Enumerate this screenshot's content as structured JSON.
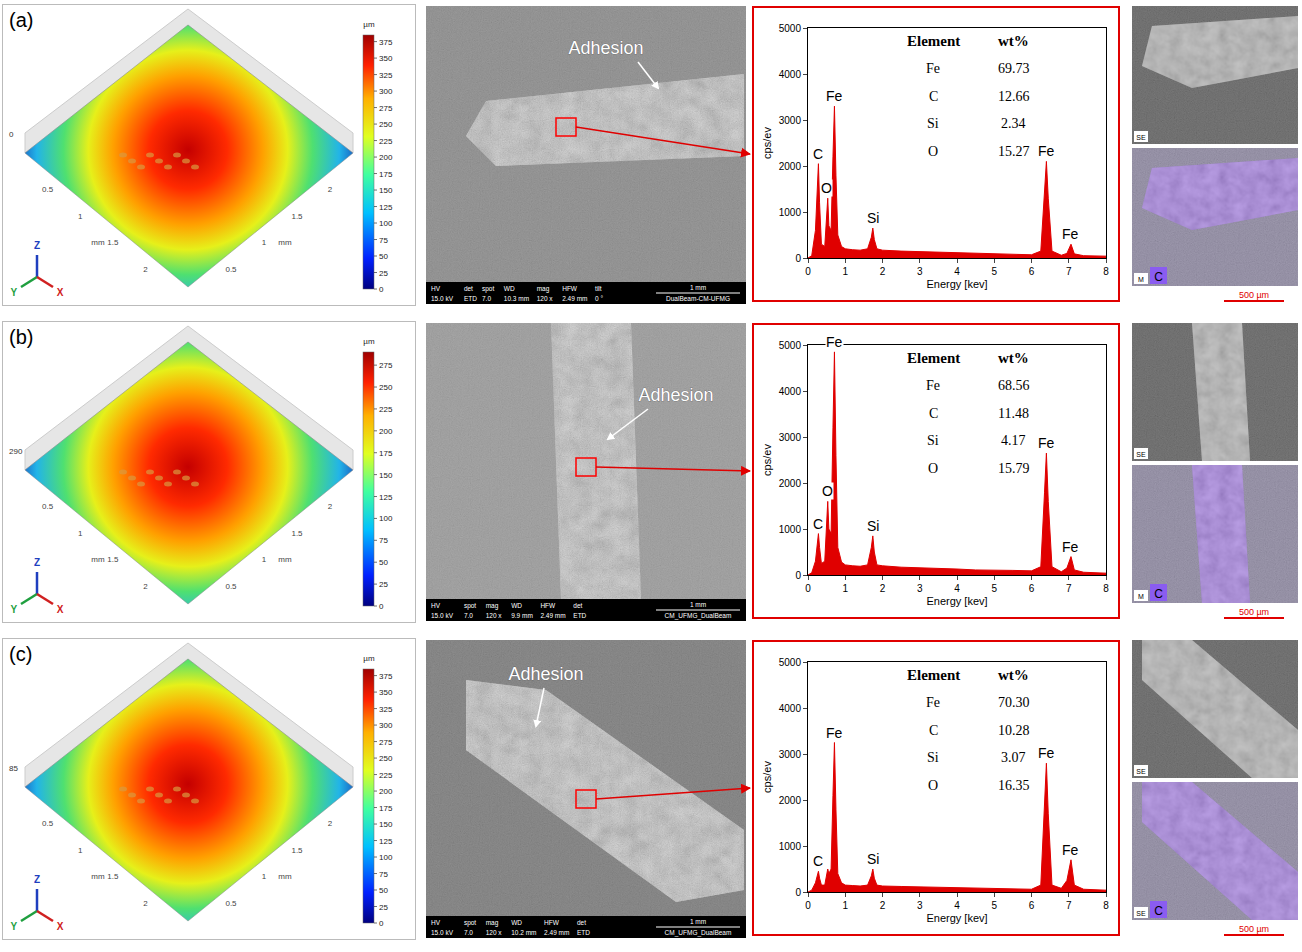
{
  "chart_data": [
    {
      "type": "area",
      "color": "#e00000",
      "x": [
        0,
        0.1,
        0.2,
        0.25,
        0.28,
        0.31,
        0.36,
        0.45,
        0.5,
        0.53,
        0.56,
        0.62,
        0.67,
        0.71,
        0.75,
        0.8,
        0.9,
        1.0,
        1.2,
        1.4,
        1.6,
        1.7,
        1.74,
        1.78,
        1.85,
        2.0,
        2.5,
        3.0,
        3.5,
        4.0,
        4.5,
        5.0,
        5.5,
        6.0,
        6.25,
        6.35,
        6.4,
        6.45,
        6.55,
        6.8,
        6.95,
        7.06,
        7.15,
        7.4,
        8.0
      ],
      "values": [
        0,
        50,
        600,
        1500,
        2050,
        1200,
        300,
        250,
        900,
        1300,
        700,
        600,
        2200,
        3300,
        1800,
        500,
        250,
        200,
        180,
        170,
        200,
        450,
        650,
        400,
        200,
        170,
        150,
        140,
        130,
        120,
        100,
        90,
        80,
        70,
        150,
        1400,
        2100,
        1300,
        150,
        60,
        100,
        300,
        90,
        50,
        40
      ],
      "xlim": [
        0,
        8
      ],
      "xticks": [
        0,
        1,
        2,
        3,
        4,
        5,
        6,
        7,
        8
      ],
      "ylim": [
        0,
        5000
      ],
      "yticks": [
        0,
        1000,
        2000,
        3000,
        4000,
        5000
      ],
      "x_label": "Energy [kev]",
      "y_label": "cps/ev",
      "grid": false,
      "peaks": [
        {
          "text": "C",
          "x": 0.28,
          "y": 2050
        },
        {
          "text": "O",
          "x": 0.5,
          "y": 1300
        },
        {
          "text": "Fe",
          "x": 0.71,
          "y": 3300
        },
        {
          "text": "Si",
          "x": 1.74,
          "y": 650
        },
        {
          "text": "Fe",
          "x": 6.4,
          "y": 2100
        },
        {
          "text": "Fe",
          "x": 7.06,
          "y": 300
        }
      ],
      "table": {
        "header": [
          "Element",
          "wt%"
        ],
        "rows": [
          [
            "Fe",
            "69.73"
          ],
          [
            "C",
            "12.66"
          ],
          [
            "Si",
            "2.34"
          ],
          [
            "O",
            "15.27"
          ]
        ]
      }
    },
    {
      "type": "area",
      "color": "#e00000",
      "x": [
        0,
        0.1,
        0.2,
        0.25,
        0.28,
        0.31,
        0.36,
        0.45,
        0.5,
        0.53,
        0.56,
        0.62,
        0.67,
        0.71,
        0.75,
        0.8,
        0.9,
        1.0,
        1.2,
        1.4,
        1.6,
        1.7,
        1.74,
        1.78,
        1.85,
        2.0,
        2.5,
        3.0,
        3.5,
        4.0,
        4.5,
        5.0,
        5.5,
        6.0,
        6.25,
        6.35,
        6.4,
        6.45,
        6.55,
        6.8,
        6.95,
        7.06,
        7.15,
        7.4,
        8.0
      ],
      "values": [
        0,
        50,
        300,
        700,
        900,
        600,
        250,
        300,
        1000,
        1600,
        1000,
        900,
        3200,
        4850,
        2600,
        600,
        280,
        220,
        200,
        190,
        220,
        600,
        850,
        500,
        220,
        200,
        170,
        160,
        150,
        130,
        110,
        110,
        100,
        90,
        180,
        1800,
        2650,
        1600,
        180,
        70,
        150,
        400,
        110,
        60,
        40
      ],
      "xlim": [
        0,
        8
      ],
      "xticks": [
        0,
        1,
        2,
        3,
        4,
        5,
        6,
        7,
        8
      ],
      "ylim": [
        0,
        5000
      ],
      "yticks": [
        0,
        1000,
        2000,
        3000,
        4000,
        5000
      ],
      "x_label": "Energy [kev]",
      "y_label": "cps/ev",
      "grid": false,
      "peaks": [
        {
          "text": "C",
          "x": 0.28,
          "y": 900
        },
        {
          "text": "O",
          "x": 0.53,
          "y": 1600
        },
        {
          "text": "Fe",
          "x": 0.71,
          "y": 4850
        },
        {
          "text": "Si",
          "x": 1.74,
          "y": 850
        },
        {
          "text": "Fe",
          "x": 6.4,
          "y": 2650
        },
        {
          "text": "Fe",
          "x": 7.06,
          "y": 400
        }
      ],
      "table": {
        "header": [
          "Element",
          "wt%"
        ],
        "rows": [
          [
            "Fe",
            "68.56"
          ],
          [
            "C",
            "11.48"
          ],
          [
            "Si",
            "4.17"
          ],
          [
            "O",
            "15.79"
          ]
        ]
      }
    },
    {
      "type": "area",
      "color": "#e00000",
      "x": [
        0,
        0.1,
        0.2,
        0.25,
        0.28,
        0.31,
        0.36,
        0.45,
        0.5,
        0.53,
        0.56,
        0.62,
        0.67,
        0.71,
        0.75,
        0.8,
        0.9,
        1.0,
        1.2,
        1.4,
        1.6,
        1.7,
        1.74,
        1.78,
        1.85,
        2.0,
        2.5,
        3.0,
        3.5,
        4.0,
        4.5,
        5.0,
        5.5,
        6.0,
        6.25,
        6.35,
        6.4,
        6.45,
        6.55,
        6.8,
        6.95,
        7.06,
        7.15,
        7.4,
        8.0
      ],
      "values": [
        0,
        40,
        200,
        380,
        450,
        300,
        150,
        150,
        350,
        500,
        400,
        500,
        2100,
        3250,
        1800,
        400,
        200,
        150,
        140,
        130,
        150,
        350,
        500,
        300,
        150,
        130,
        120,
        110,
        100,
        90,
        80,
        70,
        70,
        60,
        150,
        1800,
        2800,
        1700,
        150,
        80,
        250,
        700,
        150,
        60,
        40
      ],
      "xlim": [
        0,
        8
      ],
      "xticks": [
        0,
        1,
        2,
        3,
        4,
        5,
        6,
        7,
        8
      ],
      "ylim": [
        0,
        5000
      ],
      "yticks": [
        0,
        1000,
        2000,
        3000,
        4000,
        5000
      ],
      "x_label": "Energy [kev]",
      "y_label": "cps/ev",
      "grid": false,
      "peaks": [
        {
          "text": "C",
          "x": 0.28,
          "y": 450
        },
        {
          "text": "Fe",
          "x": 0.71,
          "y": 3250
        },
        {
          "text": "Si",
          "x": 1.74,
          "y": 500
        },
        {
          "text": "Fe",
          "x": 6.4,
          "y": 2800
        },
        {
          "text": "Fe",
          "x": 7.06,
          "y": 700
        }
      ],
      "table": {
        "header": [
          "Element",
          "wt%"
        ],
        "rows": [
          [
            "Fe",
            "70.30"
          ],
          [
            "C",
            "10.28"
          ],
          [
            "Si",
            "3.07"
          ],
          [
            "O",
            "16.35"
          ]
        ]
      }
    }
  ],
  "panels": [
    {
      "letter": "(a)",
      "profile": {
        "colorbar_unit": "µm",
        "colorbar_range": [
          0,
          385
        ],
        "colorbar_ticks": [
          0,
          25,
          50,
          75,
          100,
          125,
          150,
          175,
          200,
          225,
          250,
          275,
          300,
          325,
          350,
          375
        ],
        "corner_label": "0",
        "edge_labels": [
          "0.5",
          "1",
          "1.5",
          "2"
        ],
        "edge_unit": "mm",
        "triad": [
          "Z",
          "Y",
          "X"
        ]
      },
      "sem": {
        "label": "Adhesion",
        "info": [
          [
            "HV",
            "15.0 kV"
          ],
          [
            "det",
            "ETD"
          ],
          [
            "spot",
            "7.0"
          ],
          [
            "WD",
            "10.3 mm"
          ],
          [
            "mag",
            "120 x"
          ],
          [
            "HFW",
            "2.49 mm"
          ],
          [
            "tilt",
            "0 °"
          ]
        ],
        "scale": "1 mm",
        "lab": "DualBeam-CM-UFMG"
      },
      "mapping": {
        "labels": [
          "SE",
          "M",
          "C"
        ],
        "scale": "500 µm"
      }
    },
    {
      "letter": "(b)",
      "profile": {
        "colorbar_unit": "µm",
        "colorbar_range": [
          0,
          290
        ],
        "colorbar_ticks": [
          0,
          25,
          50,
          75,
          100,
          125,
          150,
          175,
          200,
          225,
          250,
          275
        ],
        "corner_label": "290",
        "edge_labels": [
          "0.5",
          "1",
          "1.5",
          "2"
        ],
        "edge_unit": "mm",
        "triad": [
          "Z",
          "Y",
          "X"
        ]
      },
      "sem": {
        "label": "Adhesion",
        "info": [
          [
            "HV",
            "15.0 kV"
          ],
          [
            "spot",
            "7.0"
          ],
          [
            "mag",
            "120 x"
          ],
          [
            "WD",
            "9.9 mm"
          ],
          [
            "HFW",
            "2.49 mm"
          ],
          [
            "det",
            "ETD"
          ]
        ],
        "scale": "1 mm",
        "lab": "CM_UFMG_DualBeam"
      },
      "mapping": {
        "labels": [
          "SE",
          "M",
          "C"
        ],
        "scale": "500 µm"
      }
    },
    {
      "letter": "(c)",
      "profile": {
        "colorbar_unit": "µm",
        "colorbar_range": [
          0,
          385
        ],
        "colorbar_ticks": [
          0,
          25,
          50,
          75,
          100,
          125,
          150,
          175,
          200,
          225,
          250,
          275,
          300,
          325,
          350,
          375
        ],
        "corner_label": "85",
        "edge_labels": [
          "0.5",
          "1",
          "1.5",
          "2"
        ],
        "edge_unit": "mm",
        "triad": [
          "Z",
          "Y",
          "X"
        ]
      },
      "sem": {
        "label": "Adhesion",
        "info": [
          [
            "HV",
            "15.0 kV"
          ],
          [
            "spot",
            "7.0"
          ],
          [
            "mag",
            "120 x"
          ],
          [
            "WD",
            "10.2 mm"
          ],
          [
            "HFW",
            "2.49 mm"
          ],
          [
            "det",
            "ETD"
          ]
        ],
        "scale": "1 mm",
        "lab": "CM_UFMG_DualBeam"
      },
      "mapping": {
        "labels": [
          "SE",
          "SE",
          "C"
        ],
        "scale": "500 µm"
      }
    }
  ]
}
